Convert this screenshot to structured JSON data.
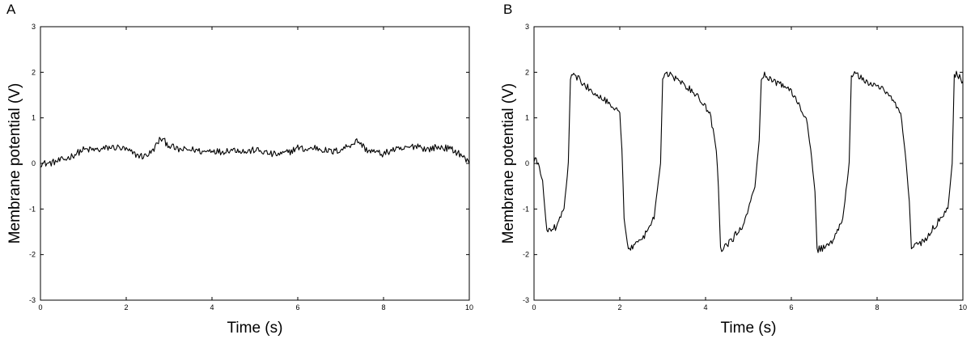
{
  "chart_data": [
    {
      "type": "line",
      "panel_label": "A",
      "xlabel": "Time (s)",
      "ylabel": "Membrane potential (V)",
      "xlim": [
        0,
        10
      ],
      "ylim": [
        -3,
        3
      ],
      "xticks": [
        0,
        2,
        4,
        6,
        8,
        10
      ],
      "yticks": [
        -3,
        -2,
        -1,
        0,
        1,
        2,
        3
      ],
      "grid": false,
      "legend": "none",
      "series": [
        {
          "color": "#000000",
          "x": [
            0,
            0.2,
            0.4,
            0.6,
            0.8,
            1.0,
            1.2,
            1.4,
            1.6,
            1.8,
            2.0,
            2.2,
            2.4,
            2.6,
            2.8,
            3.0,
            3.2,
            3.4,
            3.6,
            3.8,
            4.0,
            4.2,
            4.4,
            4.6,
            4.8,
            5.0,
            5.2,
            5.4,
            5.6,
            5.8,
            6.0,
            6.2,
            6.4,
            6.6,
            6.8,
            7.0,
            7.2,
            7.4,
            7.6,
            7.8,
            8.0,
            8.2,
            8.4,
            8.6,
            8.8,
            9.0,
            9.2,
            9.4,
            9.6,
            9.8,
            10.0
          ],
          "y": [
            0.0,
            0.0,
            0.05,
            0.1,
            0.2,
            0.3,
            0.3,
            0.3,
            0.35,
            0.35,
            0.3,
            0.2,
            0.15,
            0.25,
            0.55,
            0.4,
            0.3,
            0.3,
            0.3,
            0.25,
            0.3,
            0.25,
            0.3,
            0.3,
            0.25,
            0.3,
            0.25,
            0.2,
            0.2,
            0.25,
            0.35,
            0.3,
            0.35,
            0.3,
            0.25,
            0.3,
            0.4,
            0.5,
            0.3,
            0.25,
            0.2,
            0.3,
            0.3,
            0.35,
            0.4,
            0.3,
            0.35,
            0.35,
            0.3,
            0.2,
            0.0
          ]
        }
      ]
    },
    {
      "type": "line",
      "panel_label": "B",
      "xlabel": "Time (s)",
      "ylabel": "Membrane potential (V)",
      "xlim": [
        0,
        10
      ],
      "ylim": [
        -3,
        3
      ],
      "xticks": [
        0,
        2,
        4,
        6,
        8,
        10
      ],
      "yticks": [
        -3,
        -2,
        -1,
        0,
        1,
        2,
        3
      ],
      "grid": false,
      "legend": "none",
      "series": [
        {
          "color": "#000000",
          "x": [
            0,
            0.1,
            0.2,
            0.3,
            0.5,
            0.7,
            0.8,
            0.85,
            0.9,
            1.2,
            1.5,
            1.8,
            2.0,
            2.05,
            2.1,
            2.2,
            2.5,
            2.8,
            2.95,
            3.0,
            3.05,
            3.4,
            3.8,
            4.1,
            4.25,
            4.3,
            4.35,
            4.6,
            4.9,
            5.15,
            5.25,
            5.3,
            5.35,
            5.7,
            6.0,
            6.35,
            6.45,
            6.55,
            6.6,
            6.9,
            7.2,
            7.35,
            7.4,
            7.45,
            7.8,
            8.2,
            8.55,
            8.65,
            8.75,
            8.8,
            9.1,
            9.4,
            9.65,
            9.75,
            9.8,
            9.85,
            10.0
          ],
          "y": [
            0.1,
            0.0,
            -0.4,
            -1.5,
            -1.4,
            -1.0,
            0.0,
            1.9,
            2.0,
            1.7,
            1.5,
            1.3,
            1.1,
            0.3,
            -1.2,
            -1.9,
            -1.7,
            -1.2,
            0.0,
            1.9,
            2.0,
            1.8,
            1.5,
            1.1,
            0.3,
            -0.5,
            -1.9,
            -1.7,
            -1.3,
            -0.5,
            0.5,
            1.9,
            1.95,
            1.75,
            1.6,
            1.0,
            0.3,
            -0.6,
            -1.9,
            -1.8,
            -1.2,
            0.0,
            1.95,
            2.0,
            1.75,
            1.6,
            1.1,
            0.3,
            -0.8,
            -1.85,
            -1.7,
            -1.3,
            -1.0,
            0.0,
            1.9,
            2.0,
            1.8
          ]
        }
      ]
    }
  ]
}
